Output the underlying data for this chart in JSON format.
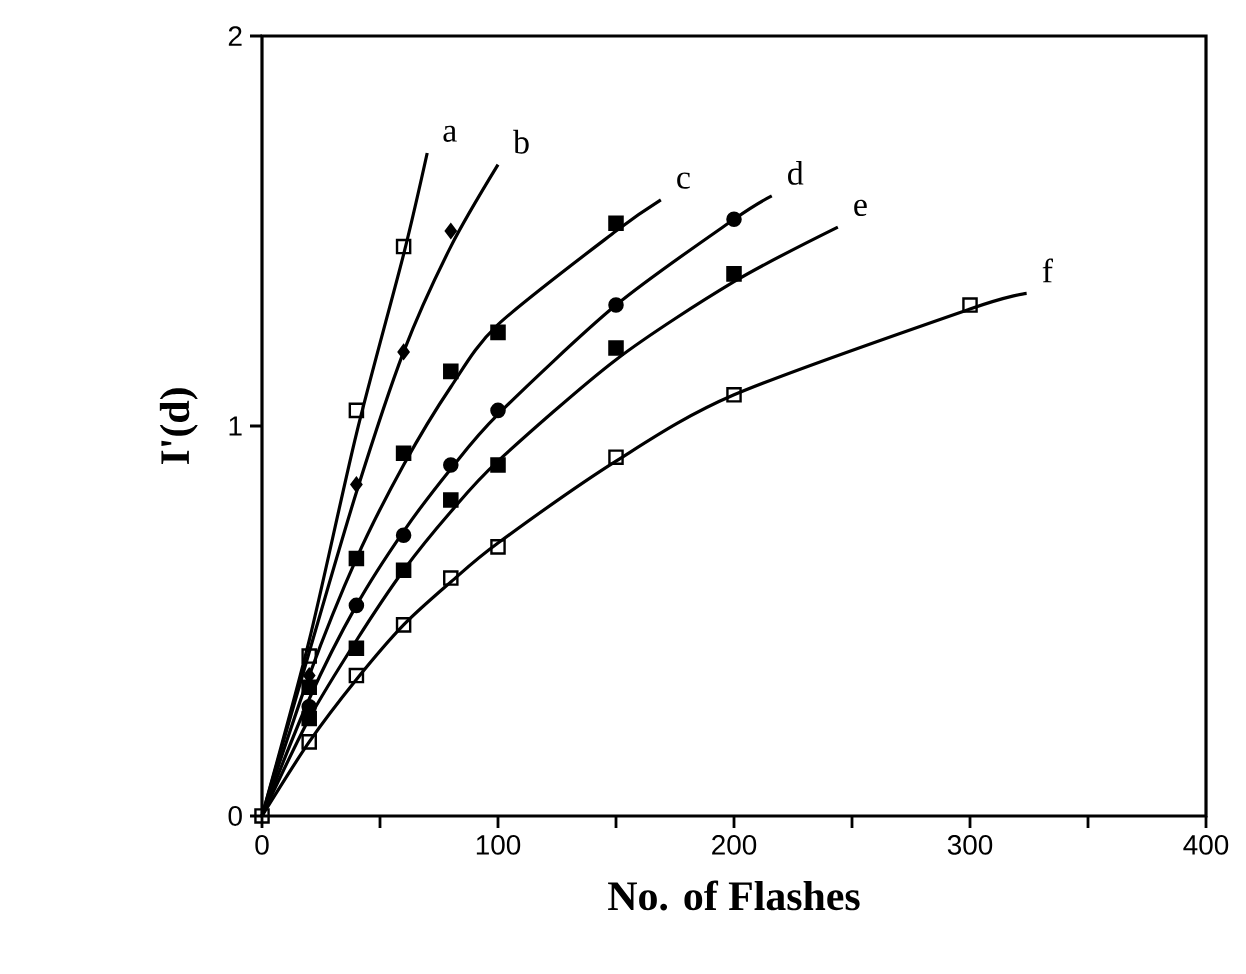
{
  "chart_data": {
    "type": "scatter",
    "xlabel": "No. of Flashes",
    "ylabel": "I'(d)",
    "xlim": [
      0,
      400
    ],
    "ylim": [
      0,
      2
    ],
    "xticks": [
      0,
      {
        "value": 50,
        "label": null
      },
      100,
      {
        "value": 150,
        "label": null
      },
      200,
      {
        "value": 250,
        "label": null
      },
      300,
      {
        "value": 350,
        "label": null
      },
      400
    ],
    "yticks": [
      0,
      1,
      2
    ],
    "grid": false,
    "series": [
      {
        "marker": "square",
        "color": "#000000",
        "x": [
          20,
          40,
          60
        ],
        "values": [
          0.41,
          1.04,
          1.46
        ]
      },
      {
        "marker": "diamond",
        "color": "#000000",
        "x": [
          20,
          40,
          60,
          80
        ],
        "values": [
          0.36,
          0.85,
          1.19,
          1.5
        ]
      },
      {
        "marker": "square",
        "color": "#000000",
        "x": [
          20,
          40,
          60,
          80,
          100,
          150
        ],
        "values": [
          0.33,
          0.66,
          0.93,
          1.14,
          1.24,
          1.52
        ]
      },
      {
        "marker": "circle",
        "color": "#000000",
        "x": [
          20,
          40,
          60,
          80,
          100,
          150,
          200
        ],
        "values": [
          0.28,
          0.54,
          0.72,
          0.9,
          1.04,
          1.31,
          1.53
        ]
      },
      {
        "marker": "square",
        "color": "#000000",
        "x": [
          20,
          40,
          60,
          80,
          100,
          150,
          200
        ],
        "values": [
          0.25,
          0.43,
          0.63,
          0.81,
          0.9,
          1.2,
          1.39
        ]
      },
      {
        "marker": "square",
        "color": "#000000",
        "x": [
          0,
          20,
          40,
          60,
          80,
          100,
          150,
          200,
          300
        ],
        "values": [
          0,
          0.19,
          0.36,
          0.49,
          0.61,
          0.69,
          0.92,
          1.08,
          1.31
        ]
      },
      {
        "type": "line",
        "name": "a",
        "marker": "none",
        "color": "#000000",
        "x": [
          0,
          20,
          40,
          60,
          70
        ],
        "values": [
          0,
          0.45,
          0.98,
          1.44,
          1.7
        ]
      },
      {
        "type": "line",
        "name": "b",
        "marker": "none",
        "color": "#000000",
        "x": [
          0,
          20,
          40,
          60,
          80,
          100
        ],
        "values": [
          0,
          0.42,
          0.83,
          1.19,
          1.46,
          1.67
        ]
      },
      {
        "type": "line",
        "name": "c",
        "marker": "none",
        "color": "#000000",
        "x": [
          0,
          20,
          40,
          60,
          80,
          100,
          150,
          169
        ],
        "values": [
          0,
          0.36,
          0.66,
          0.9,
          1.1,
          1.26,
          1.5,
          1.58
        ]
      },
      {
        "type": "line",
        "name": "d",
        "marker": "none",
        "color": "#000000",
        "x": [
          0,
          20,
          40,
          60,
          80,
          100,
          150,
          200,
          216
        ],
        "values": [
          0,
          0.3,
          0.54,
          0.73,
          0.89,
          1.03,
          1.31,
          1.53,
          1.59
        ]
      },
      {
        "type": "line",
        "name": "e",
        "marker": "none",
        "color": "#000000",
        "x": [
          0,
          20,
          40,
          60,
          80,
          100,
          150,
          200,
          244
        ],
        "values": [
          0,
          0.25,
          0.45,
          0.63,
          0.78,
          0.91,
          1.17,
          1.37,
          1.51
        ]
      },
      {
        "type": "line",
        "name": "f",
        "marker": "none",
        "color": "#000000",
        "x": [
          0,
          20,
          40,
          60,
          80,
          100,
          150,
          200,
          300,
          324
        ],
        "values": [
          0,
          0.19,
          0.35,
          0.49,
          0.6,
          0.7,
          0.91,
          1.08,
          1.3,
          1.34
        ]
      }
    ]
  }
}
